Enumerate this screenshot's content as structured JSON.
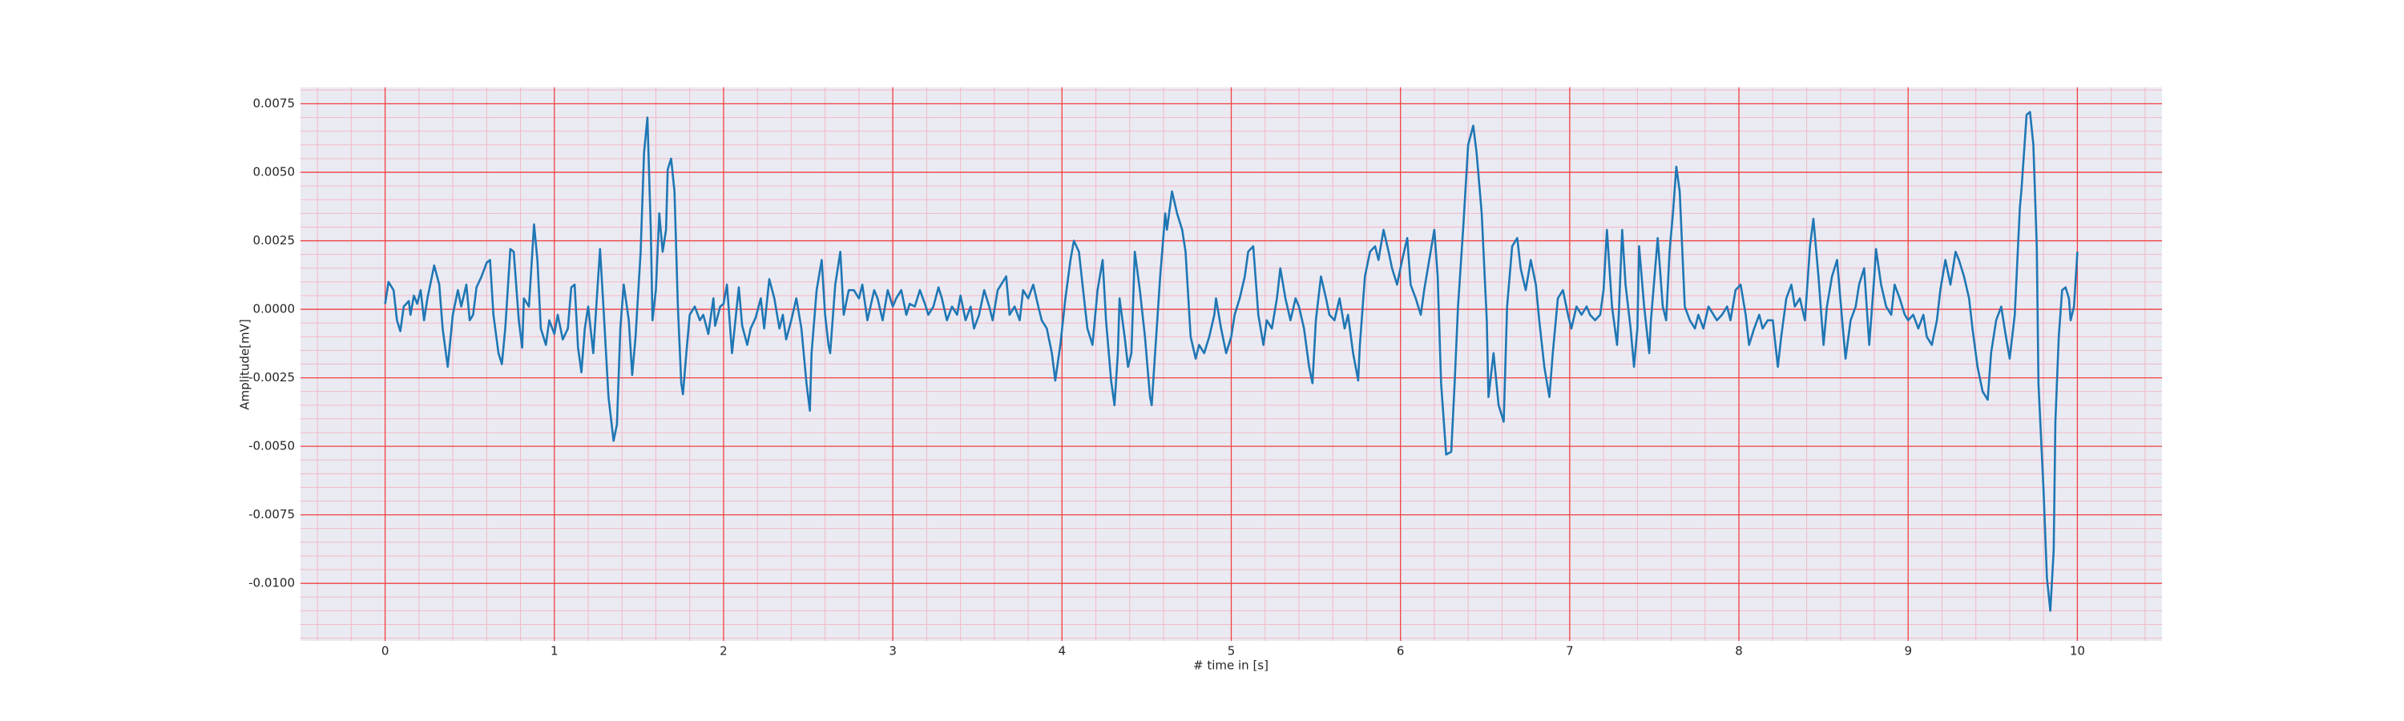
{
  "chart_data": {
    "type": "line",
    "xlabel": "# time in [s]",
    "ylabel": "Amplitude[mV]",
    "color": "#1f77b4",
    "grid": true,
    "minor_grid": true,
    "xlim": [
      -0.5,
      10.5
    ],
    "ylim": [
      -0.0121,
      0.0081
    ],
    "xticks": [
      0,
      1,
      2,
      3,
      4,
      5,
      6,
      7,
      8,
      9,
      10
    ],
    "yticks": [
      {
        "value": 0.0075,
        "label": "0.0075"
      },
      {
        "value": 0.005,
        "label": "0.0050"
      },
      {
        "value": 0.0025,
        "label": "0.0025"
      },
      {
        "value": 0,
        "label": "0.0000"
      },
      {
        "value": -0.0025,
        "label": "-0.0025"
      },
      {
        "value": -0.005,
        "label": "-0.0050"
      },
      {
        "value": -0.0075,
        "label": "-0.0075"
      },
      {
        "value": -0.01,
        "label": "-0.0100"
      }
    ],
    "xminorticks": [
      -0.4,
      -0.2,
      0.2,
      0.4,
      0.6,
      0.8,
      1.2,
      1.4,
      1.6,
      1.8,
      2.2,
      2.4,
      2.6,
      2.8,
      3.2,
      3.4,
      3.6,
      3.8,
      4.2,
      4.4,
      4.6,
      4.8,
      5.2,
      5.4,
      5.6,
      5.8,
      6.2,
      6.4,
      6.6,
      6.8,
      7.2,
      7.4,
      7.6,
      7.8,
      8.2,
      8.4,
      8.6,
      8.8,
      9.2,
      9.4,
      9.6,
      9.8,
      10.2,
      10.4
    ],
    "yminorticks": [
      -0.012,
      -0.0115,
      -0.011,
      -0.0105,
      -0.0095,
      -0.009,
      -0.0085,
      -0.008,
      -0.007,
      -0.0065,
      -0.006,
      -0.0055,
      -0.0045,
      -0.004,
      -0.0035,
      -0.003,
      -0.002,
      -0.0015,
      -0.001,
      -0.0005,
      0.0005,
      0.001,
      0.0015,
      0.002,
      0.003,
      0.0035,
      0.004,
      0.0045,
      0.0055,
      0.006,
      0.0065,
      0.007,
      0.008
    ],
    "x": [
      0,
      0.02,
      0.05,
      0.07,
      0.09,
      0.11,
      0.14,
      0.15,
      0.17,
      0.19,
      0.21,
      0.23,
      0.25,
      0.29,
      0.32,
      0.34,
      0.37,
      0.4,
      0.43,
      0.45,
      0.48,
      0.5,
      0.52,
      0.54,
      0.57,
      0.6,
      0.62,
      0.64,
      0.67,
      0.69,
      0.71,
      0.74,
      0.76,
      0.79,
      0.81,
      0.82,
      0.85,
      0.88,
      0.9,
      0.92,
      0.95,
      0.97,
      1.0,
      1.02,
      1.05,
      1.08,
      1.1,
      1.12,
      1.14,
      1.16,
      1.18,
      1.2,
      1.23,
      1.27,
      1.29,
      1.32,
      1.35,
      1.37,
      1.39,
      1.41,
      1.44,
      1.46,
      1.48,
      1.51,
      1.53,
      1.55,
      1.57,
      1.58,
      1.6,
      1.62,
      1.64,
      1.66,
      1.67,
      1.69,
      1.71,
      1.73,
      1.75,
      1.76,
      1.78,
      1.8,
      1.83,
      1.86,
      1.88,
      1.91,
      1.94,
      1.95,
      1.98,
      2.0,
      2.02,
      2.05,
      2.07,
      2.09,
      2.11,
      2.14,
      2.16,
      2.19,
      2.22,
      2.24,
      2.27,
      2.3,
      2.33,
      2.35,
      2.37,
      2.4,
      2.43,
      2.46,
      2.49,
      2.51,
      2.52,
      2.55,
      2.58,
      2.6,
      2.62,
      2.63,
      2.66,
      2.69,
      2.71,
      2.74,
      2.77,
      2.8,
      2.82,
      2.85,
      2.89,
      2.91,
      2.94,
      2.97,
      3.0,
      3.02,
      3.05,
      3.08,
      3.1,
      3.13,
      3.16,
      3.19,
      3.21,
      3.24,
      3.27,
      3.29,
      3.32,
      3.35,
      3.38,
      3.4,
      3.43,
      3.46,
      3.48,
      3.51,
      3.54,
      3.57,
      3.59,
      3.62,
      3.64,
      3.67,
      3.69,
      3.72,
      3.75,
      3.77,
      3.8,
      3.83,
      3.86,
      3.88,
      3.91,
      3.94,
      3.96,
      3.99,
      4.02,
      4.05,
      4.07,
      4.1,
      4.13,
      4.15,
      4.18,
      4.21,
      4.24,
      4.26,
      4.29,
      4.31,
      4.33,
      4.34,
      4.37,
      4.39,
      4.41,
      4.43,
      4.46,
      4.49,
      4.52,
      4.53,
      4.55,
      4.58,
      4.61,
      4.62,
      4.65,
      4.68,
      4.71,
      4.73,
      4.76,
      4.79,
      4.81,
      4.84,
      4.87,
      4.9,
      4.91,
      4.94,
      4.97,
      5.0,
      5.02,
      5.05,
      5.08,
      5.1,
      5.13,
      5.16,
      5.19,
      5.21,
      5.24,
      5.27,
      5.29,
      5.32,
      5.35,
      5.38,
      5.4,
      5.43,
      5.46,
      5.48,
      5.5,
      5.53,
      5.56,
      5.58,
      5.61,
      5.64,
      5.67,
      5.69,
      5.72,
      5.75,
      5.76,
      5.79,
      5.82,
      5.85,
      5.87,
      5.9,
      5.93,
      5.95,
      5.98,
      6.01,
      6.04,
      6.06,
      6.09,
      6.12,
      6.14,
      6.17,
      6.2,
      6.22,
      6.24,
      6.27,
      6.3,
      6.32,
      6.34,
      6.37,
      6.4,
      6.43,
      6.45,
      6.48,
      6.51,
      6.52,
      6.55,
      6.58,
      6.61,
      6.63,
      6.66,
      6.69,
      6.71,
      6.74,
      6.77,
      6.8,
      6.82,
      6.85,
      6.88,
      6.9,
      6.93,
      6.96,
      6.99,
      7.01,
      7.04,
      7.07,
      7.1,
      7.12,
      7.15,
      7.18,
      7.2,
      7.22,
      7.25,
      7.28,
      7.29,
      7.31,
      7.33,
      7.36,
      7.38,
      7.4,
      7.41,
      7.44,
      7.47,
      7.48,
      7.52,
      7.55,
      7.57,
      7.59,
      7.61,
      7.63,
      7.65,
      7.67,
      7.68,
      7.71,
      7.74,
      7.76,
      7.79,
      7.82,
      7.85,
      7.87,
      7.9,
      7.93,
      7.95,
      7.98,
      8.01,
      8.04,
      8.06,
      8.09,
      8.12,
      8.14,
      8.17,
      8.2,
      8.23,
      8.25,
      8.28,
      8.31,
      8.33,
      8.36,
      8.39,
      8.42,
      8.44,
      8.47,
      8.5,
      8.52,
      8.55,
      8.58,
      8.61,
      8.63,
      8.66,
      8.69,
      8.71,
      8.74,
      8.77,
      8.8,
      8.81,
      8.84,
      8.87,
      8.9,
      8.92,
      8.95,
      8.98,
      9.0,
      9.03,
      9.06,
      9.09,
      9.11,
      9.14,
      9.17,
      9.19,
      9.22,
      9.25,
      9.28,
      9.3,
      9.33,
      9.36,
      9.38,
      9.41,
      9.44,
      9.47,
      9.49,
      9.52,
      9.55,
      9.57,
      9.6,
      9.63,
      9.66,
      9.67,
      9.7,
      9.72,
      9.74,
      9.76,
      9.77,
      9.8,
      9.82,
      9.84,
      9.86,
      9.87,
      9.89,
      9.91,
      9.93,
      9.95,
      9.96,
      9.98,
      10.0
    ],
    "values": [
      0.0002,
      0.001,
      0.0007,
      -0.0004,
      -0.0008,
      0.0001,
      0.0003,
      -0.0002,
      0.0005,
      0.0002,
      0.0007,
      -0.0004,
      0.0004,
      0.0016,
      0.0009,
      -0.0007,
      -0.0021,
      -0.0002,
      0.0007,
      0.0001,
      0.0009,
      -0.0004,
      -0.0002,
      0.0008,
      0.0012,
      0.0017,
      0.0018,
      -0.0002,
      -0.0016,
      -0.002,
      -0.0007,
      0.0022,
      0.0021,
      -0.0004,
      -0.0014,
      0.0004,
      0.0001,
      0.0031,
      0.0018,
      -0.0007,
      -0.0013,
      -0.0004,
      -0.0009,
      -0.0002,
      -0.0011,
      -0.0007,
      0.0008,
      0.0009,
      -0.0014,
      -0.0023,
      -0.0007,
      0.0001,
      -0.0016,
      0.0022,
      0.0001,
      -0.0032,
      -0.0048,
      -0.0042,
      -0.0007,
      0.0009,
      -0.0004,
      -0.0024,
      -0.001,
      0.0021,
      0.0057,
      0.007,
      0.0029,
      -0.0004,
      0.0007,
      0.0035,
      0.0021,
      0.0029,
      0.0051,
      0.0055,
      0.0043,
      0.0001,
      -0.0027,
      -0.0031,
      -0.0016,
      -0.0002,
      0.0001,
      -0.0004,
      -0.0002,
      -0.0009,
      0.0004,
      -0.0006,
      0.0001,
      0.0002,
      0.0009,
      -0.0016,
      -0.0004,
      0.0008,
      -0.0006,
      -0.0013,
      -0.0007,
      -0.0003,
      0.0004,
      -0.0007,
      0.0011,
      0.0004,
      -0.0007,
      -0.0002,
      -0.0011,
      -0.0004,
      0.0004,
      -0.0007,
      -0.0027,
      -0.0037,
      -0.0016,
      0.0007,
      0.0018,
      -0.0002,
      -0.0013,
      -0.0016,
      0.0009,
      0.0021,
      -0.0002,
      0.0007,
      0.0007,
      0.0004,
      0.0009,
      -0.0004,
      0.0007,
      0.0004,
      -0.0004,
      0.0007,
      0.0001,
      0.0004,
      0.0007,
      -0.0002,
      0.0002,
      0.0001,
      0.0007,
      0.0002,
      -0.0002,
      0.0001,
      0.0008,
      0.0004,
      -0.0004,
      0.0001,
      -0.0002,
      0.0005,
      -0.0004,
      0.0001,
      -0.0007,
      -0.0002,
      0.0007,
      0.0001,
      -0.0004,
      0.0007,
      0.0009,
      0.0012,
      -0.0002,
      0.0001,
      -0.0004,
      0.0007,
      0.0004,
      0.0009,
      0.0001,
      -0.0004,
      -0.0007,
      -0.0016,
      -0.0026,
      -0.0013,
      0.0004,
      0.0018,
      0.0025,
      0.0021,
      0.0004,
      -0.0007,
      -0.0013,
      0.0007,
      0.0018,
      -0.0004,
      -0.0026,
      -0.0035,
      -0.0016,
      0.0004,
      -0.001,
      -0.0021,
      -0.0016,
      0.0021,
      0.0007,
      -0.001,
      -0.0032,
      -0.0035,
      -0.0016,
      0.0012,
      0.0035,
      0.0029,
      0.0043,
      0.0035,
      0.0029,
      0.0021,
      -0.001,
      -0.0018,
      -0.0013,
      -0.0016,
      -0.001,
      -0.0002,
      0.0004,
      -0.0007,
      -0.0016,
      -0.001,
      -0.0002,
      0.0004,
      0.0012,
      0.0021,
      0.0023,
      -0.0002,
      -0.0013,
      -0.0004,
      -0.0007,
      0.0004,
      0.0015,
      0.0004,
      -0.0004,
      0.0004,
      0.0001,
      -0.0007,
      -0.0021,
      -0.0027,
      -0.0004,
      0.0012,
      0.0004,
      -0.0002,
      -0.0004,
      0.0004,
      -0.0007,
      -0.0002,
      -0.0016,
      -0.0026,
      -0.0013,
      0.0012,
      0.0021,
      0.0023,
      0.0018,
      0.0029,
      0.0021,
      0.0015,
      0.0009,
      0.0018,
      0.0026,
      0.0009,
      0.0004,
      -0.0002,
      0.0007,
      0.0018,
      0.0029,
      0.0012,
      -0.0027,
      -0.0053,
      -0.0052,
      -0.0027,
      0.0001,
      0.0029,
      0.006,
      0.0067,
      0.0057,
      0.0035,
      -0.0004,
      -0.0032,
      -0.0016,
      -0.0035,
      -0.0041,
      0.0001,
      0.0023,
      0.0026,
      0.0015,
      0.0007,
      0.0018,
      0.0009,
      -0.0004,
      -0.0021,
      -0.0032,
      -0.0016,
      0.0004,
      0.0007,
      -0.0002,
      -0.0007,
      0.0001,
      -0.0002,
      0.0001,
      -0.0002,
      -0.0004,
      -0.0002,
      0.0007,
      0.0029,
      0.0001,
      -0.0013,
      -0.0002,
      0.0029,
      0.0009,
      -0.0007,
      -0.0021,
      -0.0007,
      0.0023,
      0.0001,
      -0.0016,
      -0.0004,
      0.0026,
      0.0001,
      -0.0004,
      0.0021,
      0.0035,
      0.0052,
      0.0043,
      0.0015,
      0.0001,
      -0.0004,
      -0.0007,
      -0.0002,
      -0.0007,
      0.0001,
      -0.0002,
      -0.0004,
      -0.0002,
      0.0001,
      -0.0004,
      0.0007,
      0.0009,
      -0.0002,
      -0.0013,
      -0.0007,
      -0.0002,
      -0.0007,
      -0.0004,
      -0.0004,
      -0.0021,
      -0.001,
      0.0004,
      0.0009,
      0.0001,
      0.0004,
      -0.0004,
      0.0023,
      0.0033,
      0.0012,
      -0.0013,
      0.0001,
      0.0012,
      0.0018,
      -0.0004,
      -0.0018,
      -0.0004,
      0.0001,
      0.0009,
      0.0015,
      -0.0013,
      0.0012,
      0.0022,
      0.0009,
      0.0001,
      -0.0002,
      0.0009,
      0.0004,
      -0.0002,
      -0.0004,
      -0.0002,
      -0.0007,
      -0.0002,
      -0.001,
      -0.0013,
      -0.0004,
      0.0007,
      0.0018,
      0.0009,
      0.0021,
      0.0018,
      0.0012,
      0.0004,
      -0.0007,
      -0.0021,
      -0.003,
      -0.0033,
      -0.0016,
      -0.0004,
      0.0001,
      -0.0007,
      -0.0018,
      -0.0002,
      0.0037,
      0.0044,
      0.0071,
      0.0072,
      0.006,
      0.0023,
      -0.0027,
      -0.0066,
      -0.0098,
      -0.011,
      -0.0088,
      -0.0041,
      -0.001,
      0.0007,
      0.0008,
      0.0004,
      -0.0004,
      0.0001,
      0.0021
    ]
  }
}
